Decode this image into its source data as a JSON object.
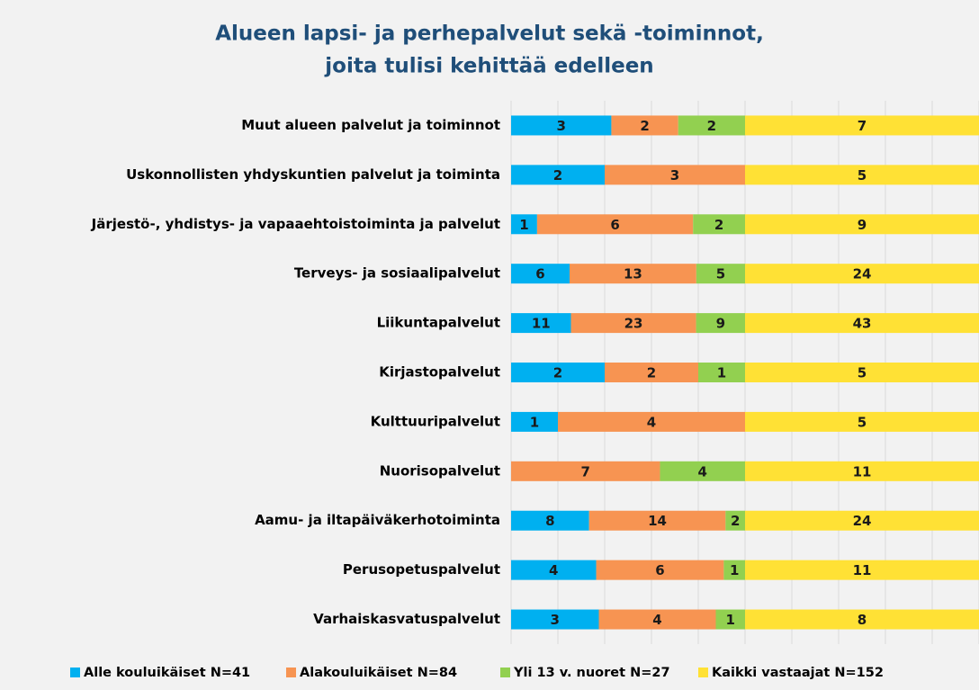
{
  "chart_data": {
    "type": "bar100h",
    "title": [
      "Alueen lapsi- ja perhepalvelut sekä -toiminnot,",
      "joita tulisi kehittää edelleen"
    ],
    "categories": [
      "Muut alueen palvelut ja toiminnot",
      "Uskonnollisten yhdyskuntien palvelut ja toiminta",
      "Järjestö-, yhdistys- ja vapaaehtoistoiminta ja palvelut",
      "Terveys- ja sosiaalipalvelut",
      "Liikuntapalvelut",
      "Kirjastopalvelut",
      "Kulttuuripalvelut",
      "Nuorisopalvelut",
      "Aamu- ja iltapäiväkerhotoiminta",
      "Perusopetuspalvelut",
      "Varhaiskasvatuspalvelut"
    ],
    "series": [
      {
        "name": "Alle kouluikäiset N=41",
        "color": "#00b0f0",
        "values": [
          3,
          2,
          1,
          6,
          11,
          2,
          1,
          0,
          8,
          4,
          3
        ]
      },
      {
        "name": "Alakouluikäiset N=84",
        "color": "#f79452",
        "values": [
          2,
          3,
          6,
          13,
          23,
          2,
          4,
          7,
          14,
          6,
          4
        ]
      },
      {
        "name": "Yli 13 v. nuoret N=27",
        "color": "#92d050",
        "values": [
          2,
          0,
          2,
          5,
          9,
          1,
          0,
          4,
          2,
          1,
          1
        ]
      },
      {
        "name": "Kaikki vastaajat N=152",
        "color": "#ffe135",
        "values": [
          7,
          5,
          9,
          24,
          43,
          5,
          5,
          11,
          24,
          11,
          8
        ]
      }
    ],
    "grid": true,
    "legend": "bottom"
  }
}
